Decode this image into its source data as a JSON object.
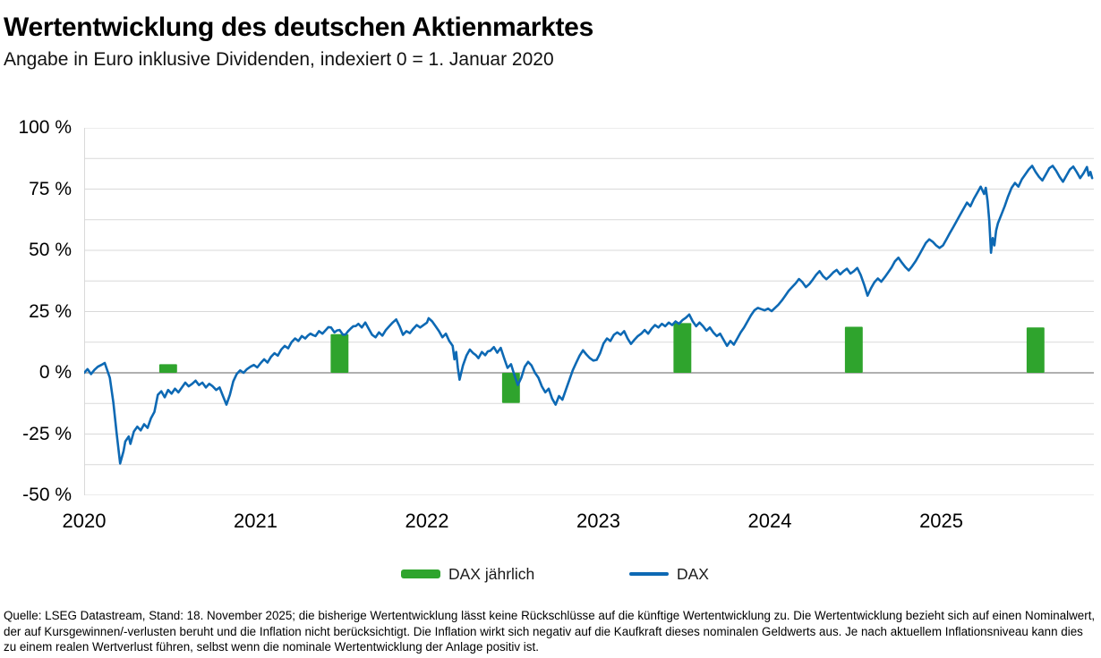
{
  "header": {
    "title": "Wertentwicklung des deutschen Aktienmarktes",
    "subtitle": "Angabe in Euro inklusive Dividenden, indexiert 0 = 1. Januar 2020"
  },
  "legend": [
    {
      "label": "DAX jährlich",
      "type": "bar",
      "color": "#2fa42d"
    },
    {
      "label": "DAX",
      "type": "line",
      "color": "#0d69b4"
    }
  ],
  "footer": {
    "text": "Quelle: LSEG Datastream, Stand: 18. November 2025; die bisherige Wertentwicklung lässt keine Rückschlüsse auf die künftige Wertentwicklung zu. Die Wertentwicklung bezieht sich auf einen Nominalwert, der auf Kursgewinnen/-verlusten beruht und die Inflation nicht berücksichtigt. Die Inflation wirkt sich negativ auf die Kaufkraft dieses nominalen Geldwerts aus. Je nach aktuellem Inflationsniveau kann dies zu einem realen Wertverlust führen, selbst wenn die nominale Wertentwicklung der Anlage positiv ist."
  },
  "chart_data": {
    "type": "line+bar",
    "title": "Wertentwicklung des deutschen Aktienmarktes",
    "subtitle": "Angabe in Euro inklusive Dividenden, indexiert 0 = 1. Januar 2020",
    "x_range": [
      2020.0,
      2025.89
    ],
    "ylim": [
      -50,
      100
    ],
    "grid": {
      "minor_step": 12.5,
      "minor_color": "#d9d9d9",
      "zero_color": "#b0b0b0"
    },
    "legend_position": "bottom",
    "y_ticks": [
      {
        "value": 100,
        "label": "100 %"
      },
      {
        "value": 75,
        "label": "75 %"
      },
      {
        "value": 50,
        "label": "50 %"
      },
      {
        "value": 25,
        "label": "25 %"
      },
      {
        "value": 0,
        "label": "0 %"
      },
      {
        "value": -25,
        "label": "-25 %"
      },
      {
        "value": -50,
        "label": "-50 %"
      }
    ],
    "x_ticks": [
      {
        "value": 2020,
        "label": "2020"
      },
      {
        "value": 2021,
        "label": "2021"
      },
      {
        "value": 2022,
        "label": "2022"
      },
      {
        "value": 2023,
        "label": "2023"
      },
      {
        "value": 2024,
        "label": "2024"
      },
      {
        "value": 2025,
        "label": "2025"
      }
    ],
    "bars": {
      "name": "DAX jährlich",
      "color": "#2fa42d",
      "width_years": 0.104,
      "points": [
        {
          "year": 2020,
          "center": 2020.49,
          "value": 3.5
        },
        {
          "year": 2021,
          "center": 2021.49,
          "value": 15.8
        },
        {
          "year": 2022,
          "center": 2022.49,
          "value": -12.3
        },
        {
          "year": 2023,
          "center": 2023.49,
          "value": 20.3
        },
        {
          "year": 2024,
          "center": 2024.49,
          "value": 18.8
        },
        {
          "year": 2025,
          "center": 2025.55,
          "value": 18.5
        }
      ]
    },
    "line": {
      "name": "DAX",
      "color": "#0d69b4",
      "stroke_width": 2.6,
      "daily_noise_pct": 0.9,
      "points": [
        [
          2020.0,
          0
        ],
        [
          2020.02,
          1.5
        ],
        [
          2020.04,
          -0.5
        ],
        [
          2020.06,
          1.2
        ],
        [
          2020.08,
          2.5
        ],
        [
          2020.1,
          3.2
        ],
        [
          2020.12,
          4
        ],
        [
          2020.13,
          2
        ],
        [
          2020.15,
          -2
        ],
        [
          2020.17,
          -12
        ],
        [
          2020.19,
          -25
        ],
        [
          2020.2,
          -31
        ],
        [
          2020.21,
          -37
        ],
        [
          2020.23,
          -32
        ],
        [
          2020.24,
          -28
        ],
        [
          2020.26,
          -26
        ],
        [
          2020.27,
          -29
        ],
        [
          2020.29,
          -24
        ],
        [
          2020.31,
          -22
        ],
        [
          2020.33,
          -23.5
        ],
        [
          2020.35,
          -21
        ],
        [
          2020.37,
          -22.5
        ],
        [
          2020.39,
          -18.5
        ],
        [
          2020.41,
          -16
        ],
        [
          2020.43,
          -9
        ],
        [
          2020.45,
          -7.5
        ],
        [
          2020.47,
          -10
        ],
        [
          2020.49,
          -7
        ],
        [
          2020.51,
          -8.5
        ],
        [
          2020.53,
          -6.5
        ],
        [
          2020.55,
          -8
        ],
        [
          2020.57,
          -6
        ],
        [
          2020.59,
          -4
        ],
        [
          2020.61,
          -5.5
        ],
        [
          2020.63,
          -4.5
        ],
        [
          2020.65,
          -3.2
        ],
        [
          2020.67,
          -5
        ],
        [
          2020.69,
          -4
        ],
        [
          2020.71,
          -6
        ],
        [
          2020.73,
          -4.5
        ],
        [
          2020.75,
          -5.5
        ],
        [
          2020.77,
          -7
        ],
        [
          2020.79,
          -6
        ],
        [
          2020.81,
          -9.5
        ],
        [
          2020.83,
          -13
        ],
        [
          2020.85,
          -9
        ],
        [
          2020.87,
          -3.5
        ],
        [
          2020.89,
          -0.5
        ],
        [
          2020.91,
          1
        ],
        [
          2020.93,
          0
        ],
        [
          2020.95,
          1.5
        ],
        [
          2020.97,
          2.5
        ],
        [
          2020.99,
          3.2
        ],
        [
          2021.01,
          2.2
        ],
        [
          2021.03,
          4
        ],
        [
          2021.05,
          5.5
        ],
        [
          2021.07,
          4.2
        ],
        [
          2021.09,
          6.5
        ],
        [
          2021.11,
          8
        ],
        [
          2021.13,
          7
        ],
        [
          2021.15,
          9.5
        ],
        [
          2021.17,
          11
        ],
        [
          2021.19,
          10
        ],
        [
          2021.21,
          12.5
        ],
        [
          2021.23,
          14
        ],
        [
          2021.25,
          13
        ],
        [
          2021.27,
          15
        ],
        [
          2021.29,
          14
        ],
        [
          2021.32,
          16
        ],
        [
          2021.35,
          15
        ],
        [
          2021.37,
          17
        ],
        [
          2021.39,
          16
        ],
        [
          2021.41,
          17.5
        ],
        [
          2021.44,
          18.5
        ],
        [
          2021.46,
          16.5
        ],
        [
          2021.49,
          17.5
        ],
        [
          2021.51,
          15.5
        ],
        [
          2021.54,
          17
        ],
        [
          2021.57,
          19
        ],
        [
          2021.6,
          20
        ],
        [
          2021.62,
          18.5
        ],
        [
          2021.64,
          20.5
        ],
        [
          2021.66,
          18
        ],
        [
          2021.68,
          15.5
        ],
        [
          2021.7,
          14.5
        ],
        [
          2021.72,
          16.5
        ],
        [
          2021.74,
          15.2
        ],
        [
          2021.76,
          17.5
        ],
        [
          2021.78,
          19
        ],
        [
          2021.8,
          20.5
        ],
        [
          2021.82,
          21.8
        ],
        [
          2021.84,
          19
        ],
        [
          2021.86,
          15.5
        ],
        [
          2021.88,
          17
        ],
        [
          2021.9,
          16.2
        ],
        [
          2021.92,
          18
        ],
        [
          2021.94,
          19.5
        ],
        [
          2021.96,
          18.5
        ],
        [
          2021.98,
          19.5
        ],
        [
          2022.0,
          20.5
        ],
        [
          2022.01,
          22.3
        ],
        [
          2022.03,
          21
        ],
        [
          2022.05,
          19
        ],
        [
          2022.07,
          17
        ],
        [
          2022.09,
          14.5
        ],
        [
          2022.11,
          16
        ],
        [
          2022.13,
          13
        ],
        [
          2022.15,
          11
        ],
        [
          2022.16,
          5.5
        ],
        [
          2022.17,
          8.5
        ],
        [
          2022.18,
          2
        ],
        [
          2022.19,
          -2.8
        ],
        [
          2022.21,
          3
        ],
        [
          2022.23,
          7
        ],
        [
          2022.25,
          9.5
        ],
        [
          2022.27,
          8
        ],
        [
          2022.3,
          6
        ],
        [
          2022.32,
          8.5
        ],
        [
          2022.34,
          7.2
        ],
        [
          2022.37,
          9
        ],
        [
          2022.39,
          10.5
        ],
        [
          2022.41,
          8.2
        ],
        [
          2022.43,
          10.2
        ],
        [
          2022.45,
          6
        ],
        [
          2022.47,
          2
        ],
        [
          2022.49,
          3.5
        ],
        [
          2022.51,
          -1
        ],
        [
          2022.53,
          -5
        ],
        [
          2022.55,
          -2
        ],
        [
          2022.57,
          2.5
        ],
        [
          2022.59,
          4.5
        ],
        [
          2022.61,
          3
        ],
        [
          2022.63,
          0
        ],
        [
          2022.65,
          -2
        ],
        [
          2022.67,
          -5.5
        ],
        [
          2022.69,
          -8
        ],
        [
          2022.71,
          -6.5
        ],
        [
          2022.73,
          -10.5
        ],
        [
          2022.75,
          -13
        ],
        [
          2022.77,
          -9.5
        ],
        [
          2022.79,
          -11
        ],
        [
          2022.81,
          -7
        ],
        [
          2022.83,
          -3
        ],
        [
          2022.85,
          1
        ],
        [
          2022.87,
          4
        ],
        [
          2022.89,
          7
        ],
        [
          2022.91,
          9.2
        ],
        [
          2022.93,
          7.5
        ],
        [
          2022.95,
          6
        ],
        [
          2022.97,
          5
        ],
        [
          2022.99,
          5.3
        ],
        [
          2023.01,
          8
        ],
        [
          2023.03,
          12
        ],
        [
          2023.05,
          14
        ],
        [
          2023.07,
          13
        ],
        [
          2023.09,
          15.5
        ],
        [
          2023.11,
          16.5
        ],
        [
          2023.13,
          15.5
        ],
        [
          2023.15,
          17
        ],
        [
          2023.17,
          14
        ],
        [
          2023.19,
          11.8
        ],
        [
          2023.21,
          13.5
        ],
        [
          2023.23,
          15
        ],
        [
          2023.25,
          16
        ],
        [
          2023.27,
          17.5
        ],
        [
          2023.29,
          16
        ],
        [
          2023.31,
          18
        ],
        [
          2023.33,
          19.5
        ],
        [
          2023.35,
          18.5
        ],
        [
          2023.37,
          20
        ],
        [
          2023.39,
          19
        ],
        [
          2023.41,
          20.5
        ],
        [
          2023.43,
          19.5
        ],
        [
          2023.45,
          21
        ],
        [
          2023.47,
          20
        ],
        [
          2023.49,
          21.5
        ],
        [
          2023.51,
          22.5
        ],
        [
          2023.53,
          23.8
        ],
        [
          2023.55,
          21
        ],
        [
          2023.57,
          19
        ],
        [
          2023.59,
          20.5
        ],
        [
          2023.61,
          19
        ],
        [
          2023.63,
          17.2
        ],
        [
          2023.65,
          18.5
        ],
        [
          2023.67,
          16.5
        ],
        [
          2023.69,
          15
        ],
        [
          2023.71,
          16
        ],
        [
          2023.73,
          13.5
        ],
        [
          2023.75,
          11
        ],
        [
          2023.77,
          13
        ],
        [
          2023.79,
          11.5
        ],
        [
          2023.81,
          14
        ],
        [
          2023.83,
          16.5
        ],
        [
          2023.85,
          18.5
        ],
        [
          2023.87,
          21
        ],
        [
          2023.89,
          23.5
        ],
        [
          2023.91,
          25.5
        ],
        [
          2023.93,
          26.5
        ],
        [
          2023.95,
          26
        ],
        [
          2023.97,
          25.5
        ],
        [
          2023.99,
          26.2
        ],
        [
          2024.01,
          25.2
        ],
        [
          2024.03,
          26.5
        ],
        [
          2024.05,
          27.8
        ],
        [
          2024.07,
          29.5
        ],
        [
          2024.09,
          31.5
        ],
        [
          2024.11,
          33.5
        ],
        [
          2024.13,
          35
        ],
        [
          2024.15,
          36.5
        ],
        [
          2024.17,
          38.3
        ],
        [
          2024.19,
          37
        ],
        [
          2024.21,
          35
        ],
        [
          2024.23,
          36.2
        ],
        [
          2024.25,
          38
        ],
        [
          2024.27,
          40
        ],
        [
          2024.29,
          41.5
        ],
        [
          2024.31,
          39.5
        ],
        [
          2024.33,
          38.2
        ],
        [
          2024.35,
          39.5
        ],
        [
          2024.37,
          41
        ],
        [
          2024.39,
          42
        ],
        [
          2024.41,
          40.2
        ],
        [
          2024.43,
          41.5
        ],
        [
          2024.45,
          42.5
        ],
        [
          2024.47,
          40.5
        ],
        [
          2024.49,
          41.5
        ],
        [
          2024.51,
          42.8
        ],
        [
          2024.53,
          40
        ],
        [
          2024.55,
          36
        ],
        [
          2024.57,
          31.5
        ],
        [
          2024.59,
          34.5
        ],
        [
          2024.61,
          37
        ],
        [
          2024.63,
          38.5
        ],
        [
          2024.65,
          37.2
        ],
        [
          2024.67,
          39
        ],
        [
          2024.69,
          41
        ],
        [
          2024.71,
          43
        ],
        [
          2024.73,
          45.5
        ],
        [
          2024.75,
          47
        ],
        [
          2024.77,
          45
        ],
        [
          2024.79,
          43.2
        ],
        [
          2024.81,
          41.8
        ],
        [
          2024.83,
          43.5
        ],
        [
          2024.85,
          45.5
        ],
        [
          2024.87,
          48
        ],
        [
          2024.89,
          50.5
        ],
        [
          2024.91,
          53
        ],
        [
          2024.93,
          54.5
        ],
        [
          2024.95,
          53.5
        ],
        [
          2024.97,
          52
        ],
        [
          2024.99,
          51
        ],
        [
          2025.01,
          52
        ],
        [
          2025.03,
          54.5
        ],
        [
          2025.05,
          57
        ],
        [
          2025.07,
          59.5
        ],
        [
          2025.09,
          62
        ],
        [
          2025.11,
          64.5
        ],
        [
          2025.13,
          67
        ],
        [
          2025.15,
          69.5
        ],
        [
          2025.17,
          68
        ],
        [
          2025.19,
          71
        ],
        [
          2025.21,
          73.5
        ],
        [
          2025.23,
          76
        ],
        [
          2025.25,
          73
        ],
        [
          2025.26,
          75.5
        ],
        [
          2025.27,
          70
        ],
        [
          2025.28,
          62
        ],
        [
          2025.29,
          49
        ],
        [
          2025.3,
          55
        ],
        [
          2025.31,
          52
        ],
        [
          2025.32,
          58
        ],
        [
          2025.33,
          61
        ],
        [
          2025.35,
          64.5
        ],
        [
          2025.37,
          68
        ],
        [
          2025.39,
          72
        ],
        [
          2025.41,
          75.5
        ],
        [
          2025.43,
          77.5
        ],
        [
          2025.45,
          76
        ],
        [
          2025.47,
          79
        ],
        [
          2025.49,
          81
        ],
        [
          2025.51,
          83
        ],
        [
          2025.53,
          84.5
        ],
        [
          2025.55,
          82
        ],
        [
          2025.57,
          80
        ],
        [
          2025.59,
          78.5
        ],
        [
          2025.61,
          81
        ],
        [
          2025.63,
          83.5
        ],
        [
          2025.65,
          84.5
        ],
        [
          2025.67,
          82.5
        ],
        [
          2025.69,
          80
        ],
        [
          2025.71,
          78
        ],
        [
          2025.73,
          80.5
        ],
        [
          2025.75,
          83
        ],
        [
          2025.77,
          84.2
        ],
        [
          2025.79,
          82
        ],
        [
          2025.81,
          79.5
        ],
        [
          2025.83,
          81.5
        ],
        [
          2025.85,
          84
        ],
        [
          2025.86,
          80.5
        ],
        [
          2025.87,
          82
        ],
        [
          2025.88,
          79.5
        ]
      ]
    }
  }
}
